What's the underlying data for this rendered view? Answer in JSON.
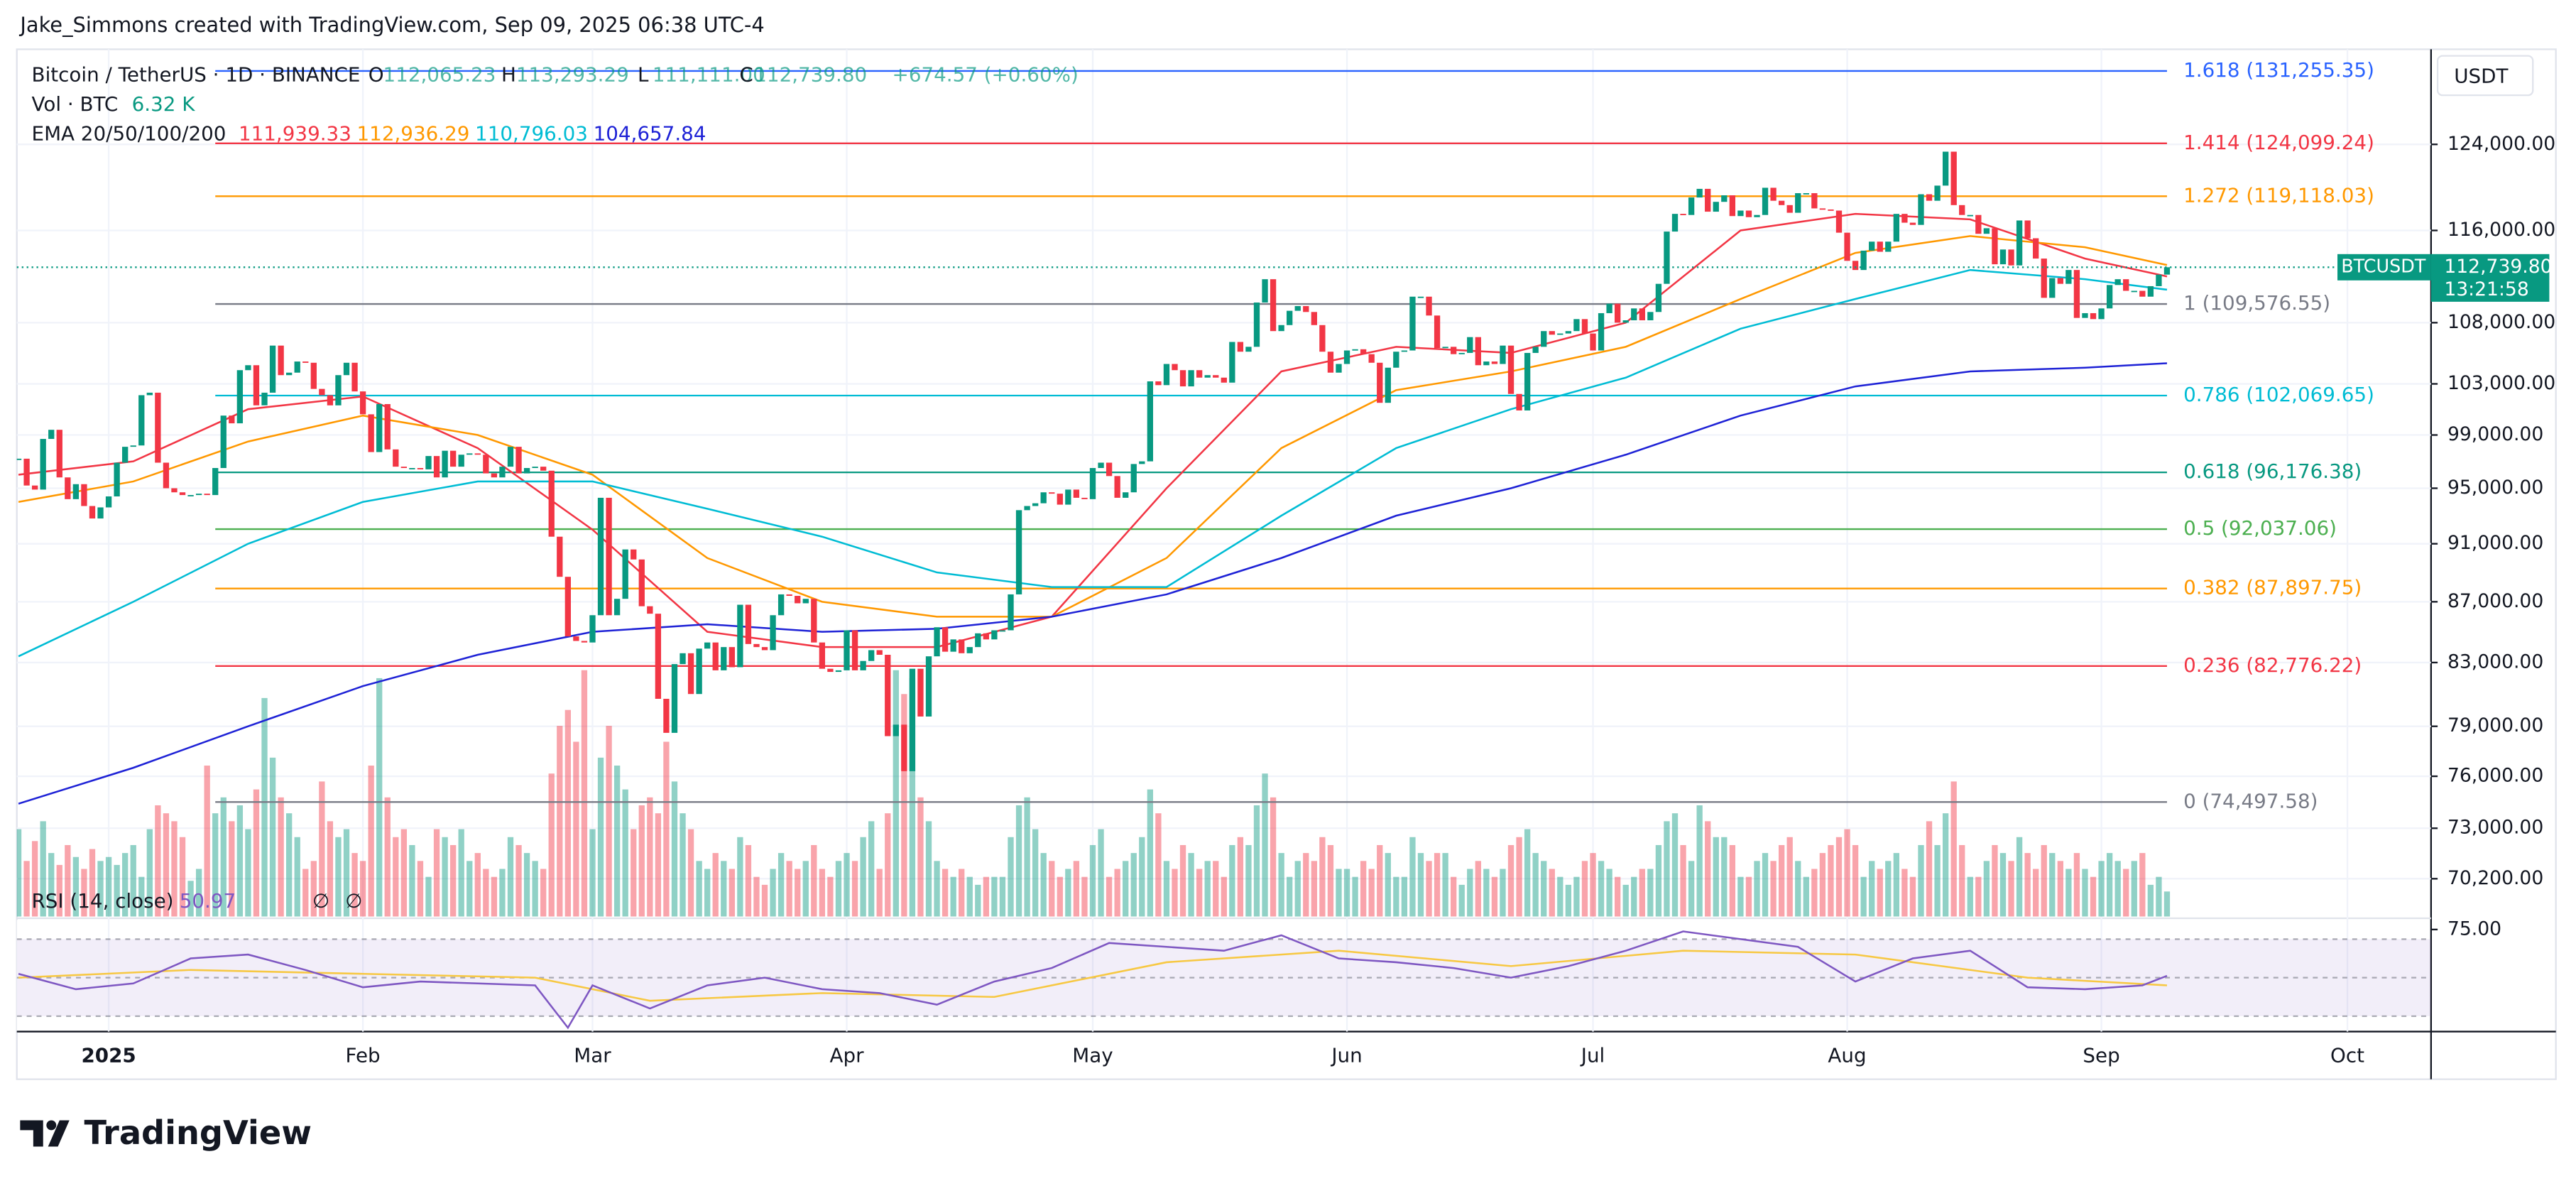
{
  "header": {
    "author_line": "Jake_Simmons created with TradingView.com, Sep 09, 2025 06:38 UTC-4"
  },
  "legend": {
    "symbol": "Bitcoin / TetherUS · 1D · BINANCE",
    "ohlc": [
      {
        "key": "O",
        "value": "112,065.23"
      },
      {
        "key": "H",
        "value": "113,293.29"
      },
      {
        "key": "L",
        "value": "111,111.00"
      },
      {
        "key": "C",
        "value": "112,739.80"
      }
    ],
    "change": "+674.57 (+0.60%)",
    "vol_label": "Vol · BTC",
    "vol_value": "6.32 K",
    "ema_label": "EMA 20/50/100/200"
  },
  "chart_data": {
    "type": "candlestick",
    "currency": "USDT",
    "symbol_tag": "BTCUSDT",
    "last_price_label": "112,739.80",
    "countdown": "13:21:58",
    "log_scale": true,
    "grid": true,
    "xlim": [
      -0.2,
      294.2
    ],
    "xticks": [
      {
        "value": 11,
        "label": "2025"
      },
      {
        "value": 42,
        "label": "Feb"
      },
      {
        "value": 70,
        "label": "Mar"
      },
      {
        "value": 101,
        "label": "Apr"
      },
      {
        "value": 131,
        "label": "May"
      },
      {
        "value": 162,
        "label": "Jun"
      },
      {
        "value": 192,
        "label": "Jul"
      },
      {
        "value": 223,
        "label": "Aug"
      },
      {
        "value": 254,
        "label": "Sep"
      },
      {
        "value": 284,
        "label": "Oct"
      }
    ],
    "ylim": [
      68170,
      133480
    ],
    "yticks": [
      {
        "value": 124000,
        "label": "124,000.00"
      },
      {
        "value": 116000,
        "label": "116,000.00"
      },
      {
        "value": 108000,
        "label": "108,000.00"
      },
      {
        "value": 103000,
        "label": "103,000.00"
      },
      {
        "value": 99000,
        "label": "99,000.00"
      },
      {
        "value": 95000,
        "label": "95,000.00"
      },
      {
        "value": 91000,
        "label": "91,000.00"
      },
      {
        "value": 87000,
        "label": "87,000.00"
      },
      {
        "value": 83000,
        "label": "83,000.00"
      },
      {
        "value": 79000,
        "label": "79,000.00"
      },
      {
        "value": 76000,
        "label": "76,000.00"
      },
      {
        "value": 73000,
        "label": "73,000.00"
      },
      {
        "value": 70200,
        "label": "70,200.00"
      }
    ],
    "up_color": "#089981",
    "down_color": "#f23645",
    "close": [
      97200,
      95200,
      94900,
      98700,
      99400,
      95800,
      94200,
      95300,
      93700,
      92800,
      93600,
      94400,
      96900,
      98100,
      98200,
      102100,
      102300,
      96900,
      95000,
      94700,
      94500,
      94500,
      94600,
      94500,
      96500,
      100500,
      99900,
      104100,
      104500,
      101300,
      102300,
      106100,
      103700,
      103900,
      104800,
      104700,
      102600,
      102100,
      101300,
      103700,
      104700,
      102400,
      100600,
      97700,
      101400,
      97900,
      96600,
      96500,
      96500,
      96400,
      97400,
      95800,
      97800,
      96600,
      97500,
      97600,
      97500,
      96100,
      95800,
      96600,
      98100,
      96100,
      96500,
      96600,
      96300,
      91500,
      88700,
      84700,
      84400,
      84300,
      86100,
      94300,
      86100,
      87200,
      90600,
      89900,
      86700,
      86200,
      80700,
      78600,
      82900,
      83600,
      81000,
      83900,
      84300,
      82500,
      84000,
      82700,
      86800,
      84200,
      84000,
      83800,
      86100,
      87500,
      87400,
      86900,
      87200,
      84300,
      82600,
      82400,
      82500,
      85100,
      82500,
      83100,
      83800,
      83500,
      78400,
      79100,
      76300,
      82600,
      79600,
      83400,
      85300,
      83700,
      84500,
      83600,
      84000,
      84900,
      84500,
      85100,
      85100,
      87500,
      93400,
      93700,
      93900,
      94700,
      94600,
      93800,
      94900,
      94300,
      94200,
      96500,
      96900,
      95900,
      94300,
      94700,
      96800,
      97000,
      103200,
      102900,
      104600,
      104100,
      102800,
      104100,
      103500,
      103700,
      103500,
      103100,
      106400,
      105600,
      106000,
      109700,
      111700,
      107300,
      107800,
      109000,
      109400,
      108900,
      107800,
      105600,
      103900,
      104600,
      105700,
      105800,
      105400,
      104700,
      101500,
      104300,
      105600,
      105700,
      110200,
      110200,
      108600,
      105900,
      106000,
      105400,
      105500,
      106800,
      104500,
      104800,
      104600,
      106100,
      102200,
      100900,
      105500,
      106000,
      107300,
      107000,
      107100,
      107300,
      108300,
      107100,
      105700,
      108800,
      109600,
      108000,
      108200,
      109200,
      108200,
      108900,
      111300,
      115900,
      117500,
      117400,
      119000,
      119800,
      117700,
      118600,
      119200,
      117300,
      117800,
      117200,
      117400,
      119900,
      118700,
      118300,
      117600,
      119400,
      119400,
      118000,
      117900,
      117800,
      115800,
      113300,
      112500,
      114200,
      115000,
      114100,
      115000,
      117500,
      116700,
      116500,
      119300,
      118700,
      120100,
      123300,
      118300,
      117400,
      117400,
      115700,
      116200,
      113000,
      114300,
      112900,
      116900,
      115300,
      113500,
      110100,
      111800,
      111300,
      112500,
      108400,
      108800,
      108300,
      109200,
      111200,
      111700,
      110700,
      110700,
      110200,
      111100,
      112100,
      112739.8
    ],
    "volume": [
      22,
      14,
      19,
      24,
      16,
      13,
      18,
      15,
      12,
      17,
      14,
      15,
      13,
      16,
      18,
      10,
      22,
      28,
      26,
      24,
      20,
      9,
      12,
      38,
      26,
      30,
      24,
      28,
      22,
      32,
      55,
      40,
      30,
      26,
      20,
      12,
      14,
      34,
      24,
      20,
      22,
      16,
      14,
      38,
      60,
      30,
      20,
      22,
      18,
      14,
      10,
      22,
      20,
      18,
      22,
      14,
      16,
      12,
      10,
      12,
      20,
      18,
      16,
      14,
      12,
      36,
      48,
      52,
      44,
      62,
      22,
      40,
      48,
      38,
      32,
      22,
      28,
      30,
      26,
      44,
      34,
      26,
      22,
      14,
      12,
      16,
      14,
      12,
      20,
      18,
      10,
      8,
      12,
      16,
      14,
      12,
      14,
      18,
      12,
      10,
      14,
      16,
      14,
      20,
      24,
      12,
      26,
      62,
      56,
      60,
      30,
      24,
      14,
      12,
      10,
      12,
      10,
      8,
      10,
      10,
      10,
      20,
      28,
      30,
      22,
      16,
      14,
      10,
      12,
      14,
      10,
      18,
      22,
      10,
      12,
      14,
      16,
      20,
      32,
      26,
      14,
      12,
      18,
      16,
      12,
      14,
      14,
      10,
      18,
      20,
      18,
      28,
      36,
      30,
      16,
      10,
      14,
      16,
      14,
      20,
      18,
      12,
      12,
      10,
      14,
      12,
      18,
      16,
      10,
      10,
      20,
      16,
      14,
      16,
      16,
      10,
      8,
      12,
      14,
      12,
      10,
      12,
      18,
      20,
      22,
      16,
      14,
      12,
      10,
      8,
      10,
      14,
      16,
      14,
      12,
      10,
      8,
      10,
      12,
      12,
      18,
      24,
      26,
      18,
      14,
      28,
      24,
      20,
      20,
      18,
      10,
      10,
      14,
      16,
      14,
      18,
      20,
      14,
      10,
      12,
      16,
      18,
      20,
      22,
      18,
      10,
      14,
      12,
      14,
      16,
      12,
      10,
      18,
      24,
      18,
      26,
      34,
      18,
      10,
      10,
      14,
      18,
      16,
      14,
      20,
      16,
      12,
      18,
      16,
      14,
      12,
      16,
      12,
      10,
      14,
      16,
      14,
      12,
      14,
      16,
      8,
      10,
      6.32
    ],
    "ema": [
      {
        "color": "#f23645",
        "last_label": "111,939.33",
        "x": [
          0,
          14,
          28,
          42,
          56,
          70,
          84,
          98,
          112,
          126,
          140,
          154,
          168,
          182,
          196,
          210,
          224,
          238,
          252,
          262
        ],
        "values": [
          96000,
          97000,
          101000,
          102000,
          98000,
          92000,
          85000,
          84000,
          84000,
          86000,
          95000,
          104000,
          106000,
          105500,
          108000,
          116000,
          117500,
          117000,
          113500,
          111939.33
        ]
      },
      {
        "color": "#ff9800",
        "last_label": "112,936.29",
        "x": [
          0,
          14,
          28,
          42,
          56,
          70,
          84,
          98,
          112,
          126,
          140,
          154,
          168,
          182,
          196,
          210,
          224,
          238,
          252,
          262
        ],
        "values": [
          94000,
          95500,
          98500,
          100500,
          99000,
          96000,
          90000,
          87000,
          86000,
          86000,
          90000,
          98000,
          102500,
          104000,
          106000,
          110000,
          114000,
          115500,
          114500,
          112936.29
        ]
      },
      {
        "color": "#00bcd4",
        "last_label": "110,796.03",
        "x": [
          0,
          14,
          28,
          42,
          56,
          70,
          84,
          98,
          112,
          126,
          140,
          154,
          168,
          182,
          196,
          210,
          224,
          238,
          252,
          262
        ],
        "values": [
          83400,
          87000,
          91000,
          94000,
          95500,
          95500,
          93500,
          91500,
          89000,
          88000,
          88000,
          93000,
          98000,
          101000,
          103500,
          107500,
          110000,
          112500,
          111700,
          110796.03
        ]
      },
      {
        "color": "#1e22d6",
        "last_label": "104,657.84",
        "x": [
          0,
          14,
          28,
          42,
          56,
          70,
          84,
          98,
          112,
          126,
          140,
          154,
          168,
          182,
          196,
          210,
          224,
          238,
          252,
          262
        ],
        "values": [
          74400,
          76500,
          79000,
          81500,
          83500,
          85000,
          85500,
          85000,
          85200,
          86000,
          87500,
          90000,
          93000,
          95000,
          97500,
          100500,
          102800,
          104000,
          104300,
          104657.84
        ]
      }
    ],
    "fib": {
      "xrange": [
        24,
        262
      ],
      "levels": [
        {
          "label": "1.618 (131,255.35)",
          "value": 131255.35,
          "color": "#2962ff"
        },
        {
          "label": "1.414 (124,099.24)",
          "value": 124099.24,
          "color": "#f23645"
        },
        {
          "label": "1.272 (119,118.03)",
          "value": 119118.03,
          "color": "#ff9800"
        },
        {
          "label": "1 (109,576.55)",
          "value": 109576.55,
          "color": "#787b86"
        },
        {
          "label": "0.786 (102,069.65)",
          "value": 102069.65,
          "color": "#00bcd4"
        },
        {
          "label": "0.618 (96,176.38)",
          "value": 96176.38,
          "color": "#089981"
        },
        {
          "label": "0.5 (92,037.06)",
          "value": 92037.06,
          "color": "#4caf50"
        },
        {
          "label": "0.382 (87,897.75)",
          "value": 87897.75,
          "color": "#ff9800"
        },
        {
          "label": "0.236 (82,776.22)",
          "value": 82776.22,
          "color": "#f23645"
        },
        {
          "label": "0 (74,497.58)",
          "value": 74497.58,
          "color": "#787b86"
        }
      ]
    },
    "rsi": {
      "title": "RSI (14, close)",
      "last_label": "50.97",
      "symbols": [
        "∅",
        "∅"
      ],
      "color": "#7e57c2",
      "ylim": [
        22,
        80
      ],
      "yticks": [
        {
          "value": 75,
          "label": "75.00"
        }
      ],
      "bands": [
        30,
        50,
        70
      ],
      "x": [
        0,
        7,
        14,
        21,
        28,
        35,
        42,
        49,
        56,
        63,
        67,
        70,
        77,
        84,
        91,
        98,
        105,
        112,
        119,
        126,
        133,
        140,
        147,
        154,
        161,
        168,
        175,
        182,
        189,
        196,
        203,
        210,
        217,
        224,
        231,
        238,
        245,
        252,
        259,
        262
      ],
      "values": [
        52,
        44,
        47,
        60,
        62,
        54,
        45,
        48,
        47,
        46,
        24,
        46,
        34,
        46,
        50,
        44,
        42,
        36,
        48,
        55,
        68,
        66,
        64,
        72,
        60,
        58,
        55,
        50,
        56,
        64,
        74,
        70,
        66,
        48,
        60,
        64,
        45,
        44,
        46,
        50.97
      ],
      "ma": {
        "color": "#f7c843",
        "x": [
          0,
          21,
          42,
          63,
          77,
          98,
          119,
          140,
          161,
          182,
          203,
          224,
          245,
          262
        ],
        "values": [
          50,
          54,
          52,
          50,
          38,
          42,
          40,
          58,
          64,
          56,
          64,
          62,
          50,
          46
        ]
      }
    }
  },
  "footer": {
    "brand": "TradingView"
  }
}
